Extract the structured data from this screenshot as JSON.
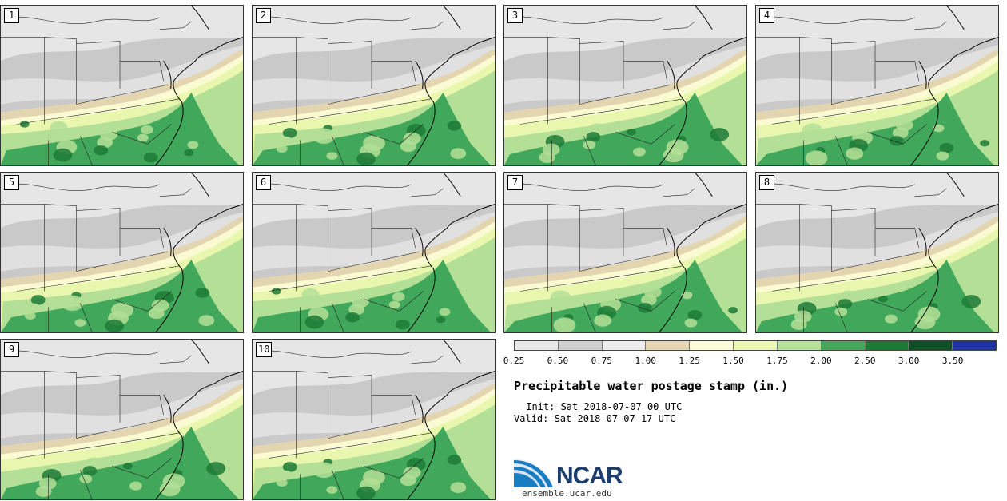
{
  "panels": [
    {
      "label": "1",
      "variant": 0
    },
    {
      "label": "2",
      "variant": 1
    },
    {
      "label": "3",
      "variant": 2
    },
    {
      "label": "4",
      "variant": 3
    },
    {
      "label": "5",
      "variant": 1
    },
    {
      "label": "6",
      "variant": 0
    },
    {
      "label": "7",
      "variant": 3
    },
    {
      "label": "8",
      "variant": 2
    },
    {
      "label": "9",
      "variant": 2
    },
    {
      "label": "10",
      "variant": 1
    }
  ],
  "colorbar": {
    "colors": [
      "#e8e8e8",
      "#cfcfcf",
      "#ededed",
      "#e6d6b4",
      "#fdfdd9",
      "#ecf8b3",
      "#b6e29a",
      "#41a85b",
      "#1d7a36",
      "#0e4f26",
      "#1e2fa8"
    ],
    "tick_labels": [
      "0.25",
      "0.50",
      "0.75",
      "1.00",
      "1.25",
      "1.50",
      "1.75",
      "2.00",
      "2.50",
      "3.00",
      "3.50"
    ]
  },
  "title": "Precipitable water postage stamp (in.)",
  "init_line": " Init: Sat 2018-07-07 00 UTC",
  "valid_line": "Valid: Sat 2018-07-07 17 UTC",
  "logo_text": "NCAR",
  "website": "ensemble.ucar.edu",
  "map_colors": {
    "land_dry": "#c9c9c9",
    "land_light": "#e6e6e6",
    "tan": "#e3d5b0",
    "pale_yellow": "#fbfbd3",
    "yellow_green": "#e8f7ad",
    "light_green": "#b4df96",
    "green": "#41a85b",
    "dark_green": "#1d7a36",
    "borders": "#222222"
  }
}
